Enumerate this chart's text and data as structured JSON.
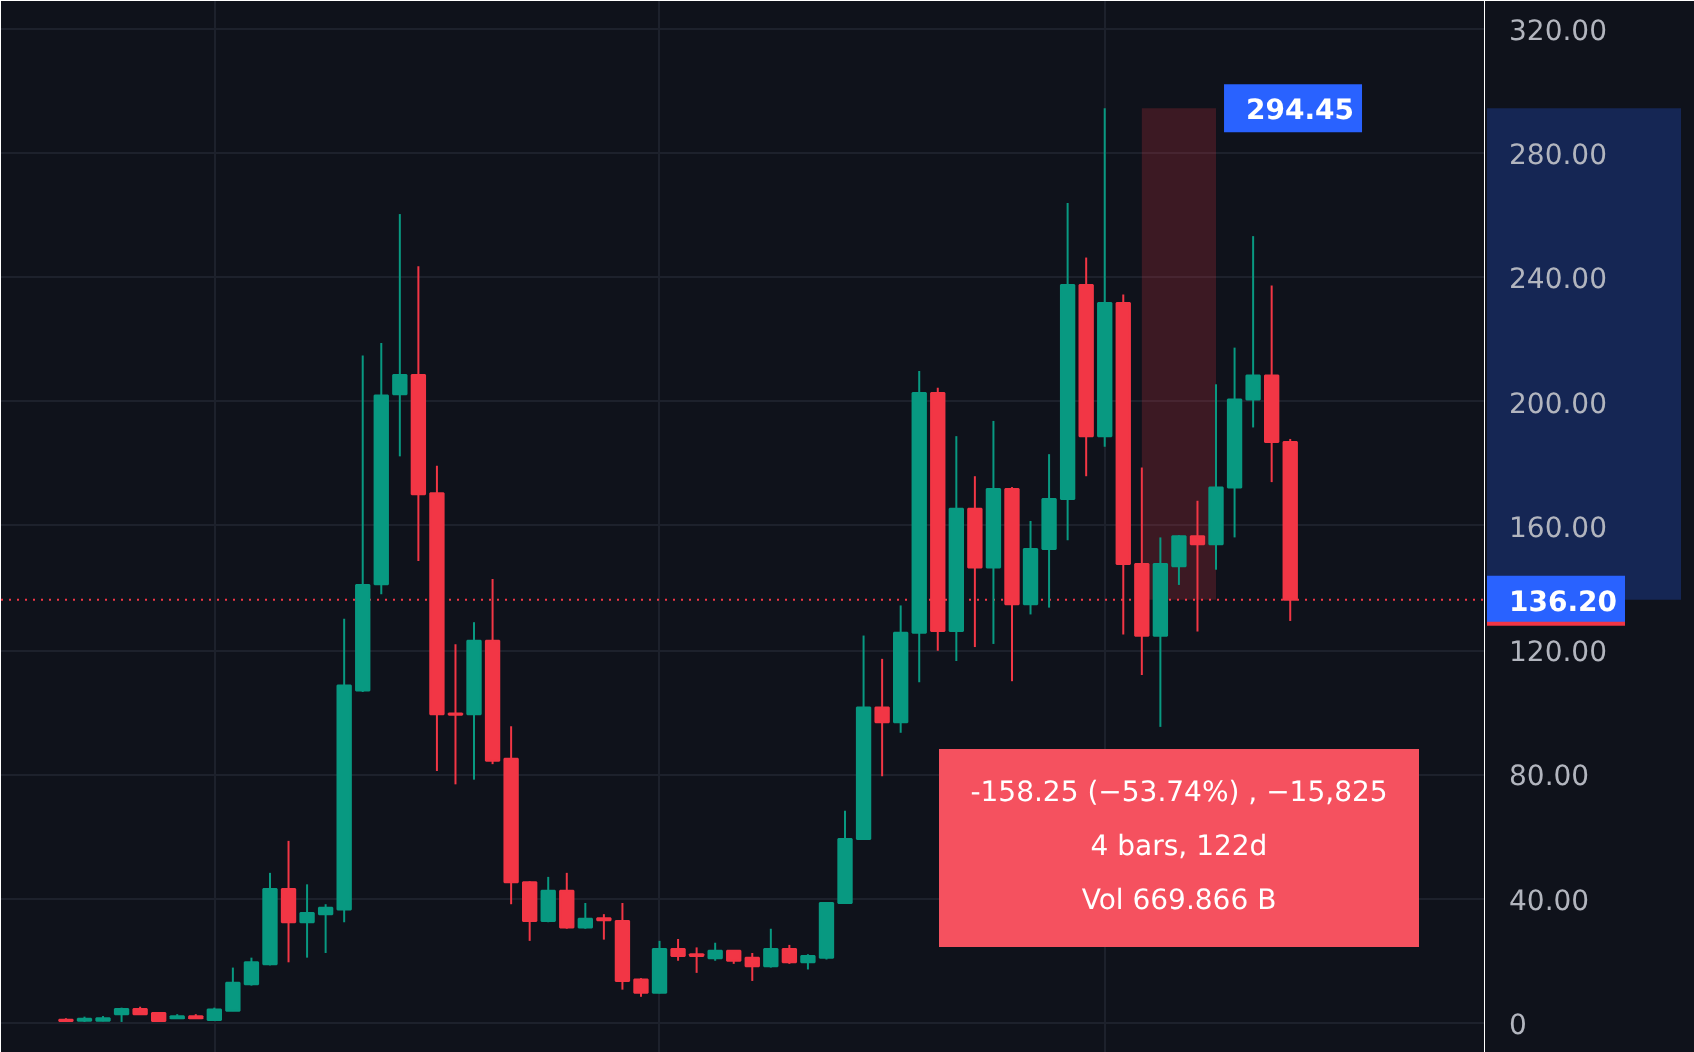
{
  "chart_data": {
    "type": "candlestick",
    "categories": [
      null,
      null,
      null,
      null,
      null,
      null,
      null,
      null,
      null,
      null,
      null,
      null,
      null,
      null,
      null,
      null,
      null,
      null,
      null,
      null,
      null,
      null,
      null,
      null,
      null,
      null,
      null,
      null,
      null,
      null,
      null,
      null,
      null,
      null,
      null,
      null,
      null,
      null,
      null,
      null,
      null,
      null,
      null,
      null,
      null,
      null,
      null,
      null,
      null,
      null,
      null,
      null,
      null,
      null,
      null,
      null,
      null,
      null,
      null,
      null,
      null,
      null,
      null,
      null,
      null,
      null,
      null,
      null,
      null,
      null,
      null,
      null,
      null,
      null,
      null,
      null,
      null,
      null,
      null,
      null
    ],
    "ohlc": [
      null,
      null,
      null,
      [
        1.0,
        1.5,
        0.4,
        0.6
      ],
      [
        0.7,
        2.0,
        0.3,
        1.3
      ],
      [
        0.7,
        2.2,
        0.5,
        1.5
      ],
      [
        2.8,
        4.9,
        0.3,
        4.5
      ],
      [
        4.5,
        5.2,
        2.6,
        2.8
      ],
      [
        3.2,
        3.4,
        0.5,
        0.6
      ],
      [
        1.5,
        2.8,
        1.3,
        2.1
      ],
      [
        2.1,
        2.8,
        1.3,
        1.5
      ],
      [
        0.9,
        4.9,
        0.7,
        4.3
      ],
      [
        3.9,
        17.8,
        3.8,
        12.9
      ],
      [
        12.4,
        21.0,
        12.0,
        19.5
      ],
      [
        18.9,
        48.3,
        18.5,
        43.1
      ],
      [
        43.1,
        58.6,
        19.5,
        32.4
      ],
      [
        32.4,
        44.6,
        21.0,
        35.4
      ],
      [
        35.0,
        38.2,
        22.5,
        37.1
      ],
      [
        36.5,
        130.1,
        32.4,
        108.6
      ],
      [
        107.0,
        214.9,
        106.5,
        141.0
      ],
      [
        141.2,
        218.9,
        138.0,
        202.0
      ],
      [
        202.4,
        260.4,
        182.4,
        208.6
      ],
      [
        208.6,
        243.6,
        148.7,
        170.2
      ],
      [
        170.5,
        179.4,
        81.1,
        99.4
      ],
      [
        99.6,
        121.9,
        76.8,
        99.2
      ],
      [
        99.4,
        129.0,
        78.3,
        123.0
      ],
      [
        123.0,
        142.9,
        83.3,
        84.4
      ],
      [
        85.0,
        95.5,
        38.2,
        45.3
      ],
      [
        45.3,
        45.6,
        26.4,
        32.8
      ],
      [
        32.8,
        47.0,
        32.4,
        42.5
      ],
      [
        42.5,
        48.3,
        30.3,
        30.7
      ],
      [
        30.7,
        38.6,
        30.3,
        33.5
      ],
      [
        33.7,
        35.0,
        26.8,
        33.0
      ],
      [
        32.8,
        38.6,
        10.7,
        13.5
      ],
      [
        14.0,
        14.4,
        8.4,
        9.7
      ],
      [
        9.7,
        26.4,
        9.5,
        23.8
      ],
      [
        23.8,
        27.0,
        20.0,
        21.5
      ],
      [
        22.1,
        24.3,
        16.1,
        21.5
      ],
      [
        20.8,
        25.8,
        20.0,
        23.2
      ],
      [
        23.2,
        23.4,
        19.0,
        20.0
      ],
      [
        21.0,
        22.5,
        13.5,
        18.2
      ],
      [
        18.2,
        30.3,
        17.8,
        23.8
      ],
      [
        23.8,
        25.1,
        19.0,
        19.5
      ],
      [
        19.5,
        22.1,
        17.2,
        21.5
      ],
      [
        21.0,
        38.8,
        20.4,
        38.6
      ],
      [
        38.6,
        68.3,
        38.4,
        59.2
      ],
      [
        59.2,
        124.7,
        59.0,
        101.5
      ],
      [
        101.5,
        117.2,
        79.4,
        96.8
      ],
      [
        96.8,
        134.4,
        93.4,
        125.6
      ],
      [
        125.6,
        209.9,
        109.7,
        202.8
      ],
      [
        202.8,
        204.5,
        119.8,
        126.2
      ],
      [
        126.2,
        188.9,
        116.5,
        165.5
      ],
      [
        165.5,
        176.0,
        121.0,
        146.6
      ],
      [
        146.6,
        193.8,
        122.0,
        171.9
      ],
      [
        171.9,
        172.5,
        110.0,
        134.8
      ],
      [
        134.8,
        161.6,
        131.5,
        152.6
      ],
      [
        152.6,
        183.1,
        133.7,
        168.7
      ],
      [
        168.7,
        264.0,
        155.4,
        237.6
      ],
      [
        237.6,
        246.4,
        176.0,
        188.9
      ],
      [
        188.9,
        294.45,
        185.5,
        231.8
      ],
      [
        231.8,
        234.5,
        125.0,
        147.7
      ],
      [
        147.7,
        178.8,
        112.0,
        124.6
      ],
      [
        124.6,
        156.3,
        95.3,
        147.7
      ],
      [
        147.0,
        157.0,
        141.0,
        156.7
      ],
      [
        156.7,
        168.1,
        126.0,
        154.1
      ],
      [
        154.1,
        205.6,
        145.9,
        172.4
      ],
      [
        172.4,
        217.4,
        156.3,
        200.7
      ],
      [
        200.7,
        253.3,
        191.7,
        208.4
      ],
      [
        208.4,
        237.4,
        174.1,
        187.0
      ],
      [
        187.0,
        188.0,
        129.4,
        136.2
      ],
      null,
      null,
      null,
      null,
      null,
      null,
      null,
      null,
      null,
      null
    ],
    "colors": [
      null,
      null,
      null,
      "#f23645",
      "#089981",
      "#089981",
      "#089981",
      "#f23645",
      "#f23645",
      "#089981",
      "#f23645",
      "#089981",
      "#089981",
      "#089981",
      "#089981",
      "#f23645",
      "#089981",
      "#089981",
      "#089981",
      "#089981",
      "#089981",
      "#089981",
      "#f23645",
      "#f23645",
      "#f23645",
      "#089981",
      "#f23645",
      "#f23645",
      "#f23645",
      "#089981",
      "#f23645",
      "#089981",
      "#f23645",
      "#f23645",
      "#f23645",
      "#089981",
      "#f23645",
      "#f23645",
      "#089981",
      "#f23645",
      "#f23645",
      "#089981",
      "#f23645",
      "#089981",
      "#089981",
      "#089981",
      "#089981",
      "#f23645",
      "#089981",
      "#089981",
      "#f23645",
      "#089981",
      "#f23645",
      "#089981",
      "#f23645",
      "#089981",
      "#089981",
      "#089981",
      "#f23645",
      "#089981",
      "#f23645",
      "#f23645",
      "#089981",
      "#089981",
      "#f23645",
      "#089981",
      "#089981",
      "#089981",
      "#f23645",
      "#f23645",
      null,
      null,
      null,
      null,
      null,
      null,
      null,
      null,
      null,
      null
    ],
    "ylim": [
      -9.7,
      329.0
    ],
    "yticks": [
      0,
      {
        "value": 40,
        "label": "40.00"
      },
      {
        "value": 80,
        "label": "80.00"
      },
      {
        "value": 120,
        "label": "120.00"
      },
      {
        "value": 160,
        "label": "160.00"
      },
      {
        "value": 200,
        "label": "200.00"
      },
      {
        "value": 240,
        "label": "240.00"
      },
      {
        "value": 280,
        "label": "280.00"
      },
      {
        "value": 320,
        "label": "320.00"
      }
    ],
    "tick_labels": "y",
    "grid": true,
    "ref_lines": [
      {
        "axis": "y",
        "value": 136.2,
        "label": "136.20",
        "color": "#f23645",
        "line_style": "dotted"
      }
    ],
    "bands": [
      {
        "axis": "y",
        "from": 136.2,
        "to": 294.45,
        "label": "294.45",
        "color": "#f23645"
      }
    ],
    "annotations": [
      "-158.25 (−53.74%) , −15,825",
      "4 bars, 122d",
      "Vol 669.866 B"
    ]
  }
}
